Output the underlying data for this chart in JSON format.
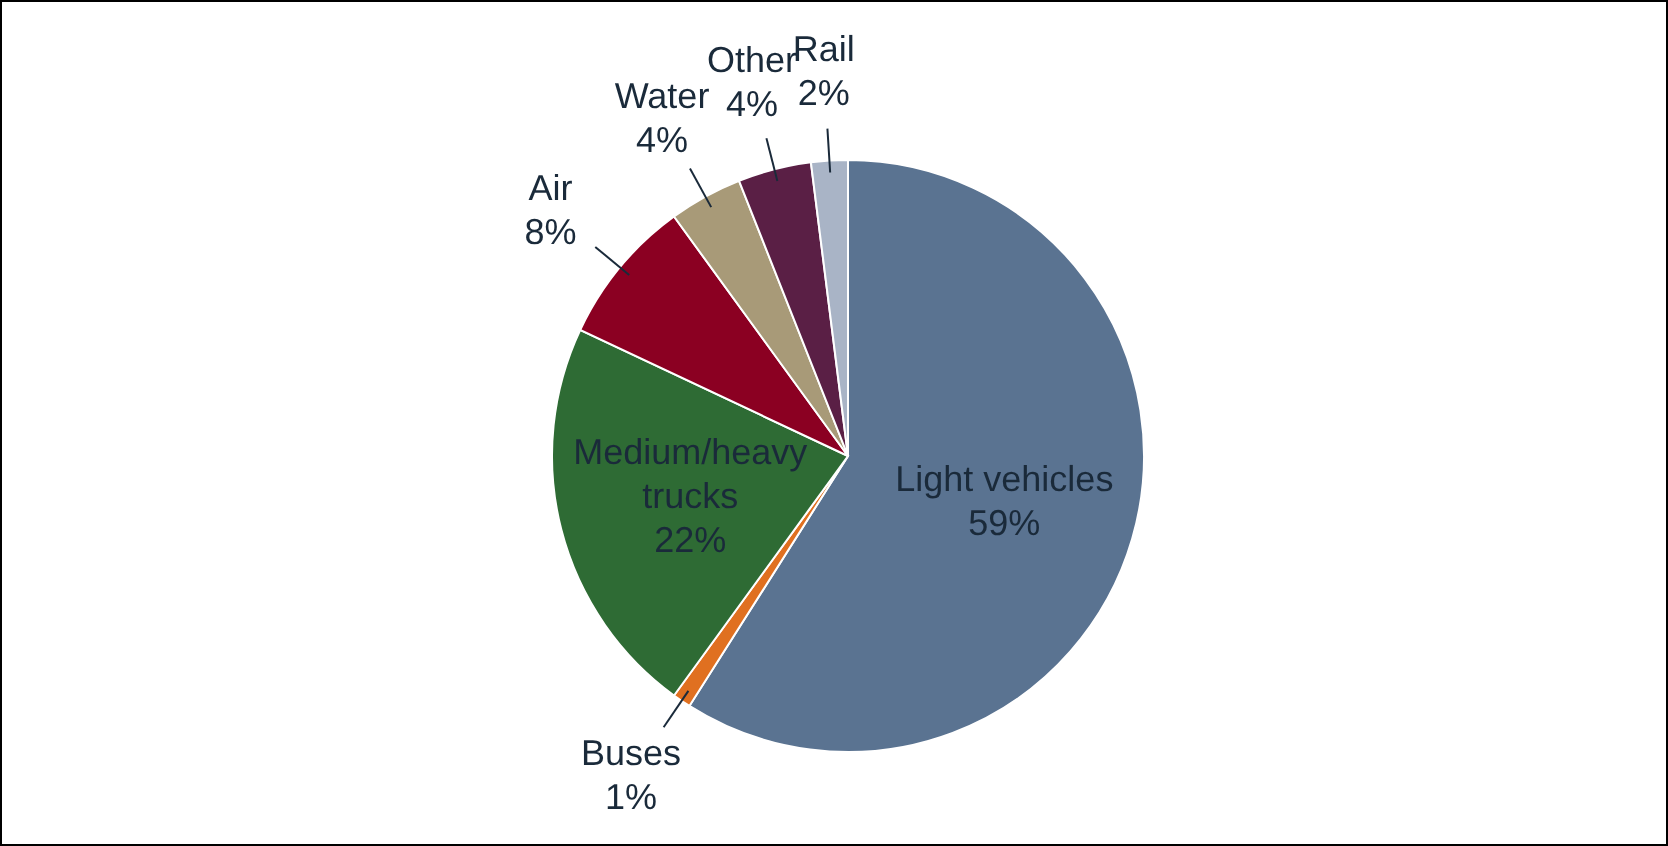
{
  "chart_data": {
    "type": "pie",
    "categories": [
      "Light vehicles",
      "Buses",
      "Medium/heavy trucks",
      "Air",
      "Water",
      "Other",
      "Rail"
    ],
    "values": [
      59,
      1,
      22,
      8,
      4,
      4,
      2
    ],
    "value_labels": [
      "59%",
      "1%",
      "22%",
      "8%",
      "4%",
      "4%",
      "2%"
    ],
    "colors": [
      "#5a7391",
      "#e07020",
      "#2e6b34",
      "#8b0022",
      "#a89a78",
      "#5a1f45",
      "#a9b4c6"
    ]
  }
}
